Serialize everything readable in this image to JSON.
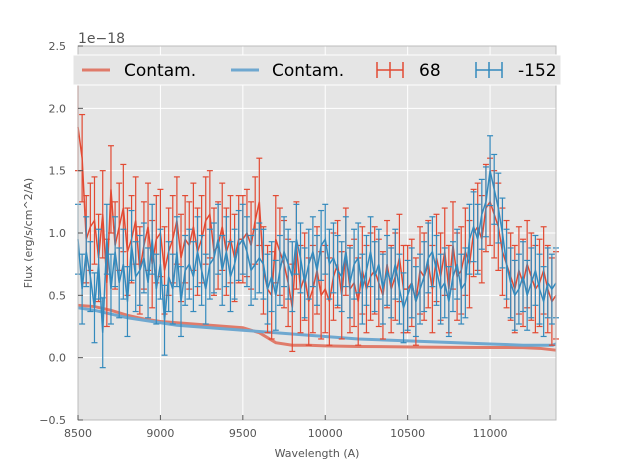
{
  "chart_data": {
    "type": "line",
    "title": "",
    "xlabel": "Wavelength (A)",
    "ylabel": "Flux (erg/s/cm^2/A)",
    "offset_text": "1e−18",
    "xlim": [
      8500,
      11400
    ],
    "ylim": [
      -0.5,
      2.5
    ],
    "xticks": [
      8500,
      9000,
      9500,
      10000,
      10500,
      11000
    ],
    "yticks": [
      -0.5,
      0.0,
      0.5,
      1.0,
      1.5,
      2.0,
      2.5
    ],
    "grid": true,
    "legend_position": "top",
    "legend": [
      {
        "label": "Contam.",
        "kind": "line",
        "color": "#e07b6a"
      },
      {
        "label": "Contam.",
        "kind": "line",
        "color": "#6fa8d0"
      },
      {
        "label": "68",
        "kind": "errorbar",
        "color": "#e24a33"
      },
      {
        "label": "-152",
        "kind": "errorbar",
        "color": "#348abd"
      }
    ],
    "series": [
      {
        "name": "Contam. (68)",
        "color": "#e07b6a",
        "x": [
          8500,
          8600,
          8700,
          8800,
          8900,
          9000,
          9100,
          9200,
          9300,
          9400,
          9500,
          9600,
          9650,
          9700,
          9800,
          9900,
          10000,
          10200,
          10400,
          10600,
          10800,
          11000,
          11200,
          11300,
          11400
        ],
        "y": [
          0.42,
          0.41,
          0.38,
          0.34,
          0.31,
          0.29,
          0.28,
          0.27,
          0.26,
          0.25,
          0.24,
          0.2,
          0.16,
          0.12,
          0.1,
          0.1,
          0.095,
          0.09,
          0.088,
          0.085,
          0.083,
          0.082,
          0.081,
          0.075,
          0.06
        ]
      },
      {
        "name": "Contam. (-152)",
        "color": "#6fa8d0",
        "x": [
          8500,
          8600,
          8700,
          8800,
          8900,
          9000,
          9100,
          9200,
          9300,
          9400,
          9500,
          9600,
          9700,
          9800,
          9900,
          10000,
          10200,
          10400,
          10600,
          10800,
          11000,
          11200,
          11300,
          11380,
          11400
        ],
        "y": [
          0.4,
          0.38,
          0.35,
          0.32,
          0.3,
          0.28,
          0.26,
          0.25,
          0.24,
          0.23,
          0.22,
          0.21,
          0.2,
          0.19,
          0.18,
          0.17,
          0.15,
          0.14,
          0.13,
          0.12,
          0.11,
          0.1,
          0.1,
          0.1,
          0.11
        ]
      },
      {
        "name": "68",
        "color": "#e24a33",
        "errorbars": true,
        "x": [
          8500,
          8525,
          8550,
          8575,
          8600,
          8625,
          8650,
          8675,
          8700,
          8725,
          8750,
          8775,
          8800,
          8825,
          8850,
          8875,
          8900,
          8925,
          8950,
          8975,
          9000,
          9025,
          9050,
          9075,
          9100,
          9125,
          9150,
          9175,
          9200,
          9225,
          9250,
          9275,
          9300,
          9325,
          9350,
          9375,
          9400,
          9425,
          9450,
          9475,
          9500,
          9525,
          9550,
          9575,
          9600,
          9625,
          9650,
          9675,
          9700,
          9725,
          9750,
          9775,
          9800,
          9825,
          9850,
          9875,
          9900,
          9925,
          9950,
          9975,
          10000,
          10025,
          10050,
          10075,
          10100,
          10125,
          10150,
          10175,
          10200,
          10225,
          10250,
          10275,
          10300,
          10325,
          10350,
          10375,
          10400,
          10425,
          10450,
          10475,
          10500,
          10525,
          10550,
          10575,
          10600,
          10625,
          10650,
          10675,
          10700,
          10725,
          10750,
          10775,
          10800,
          10825,
          10850,
          10875,
          10900,
          10925,
          10950,
          10975,
          11000,
          11025,
          11050,
          11075,
          11100,
          11125,
          11150,
          11175,
          11200,
          11225,
          11250,
          11275,
          11300,
          11325,
          11350,
          11375,
          11400
        ],
        "y": [
          1.85,
          1.6,
          0.95,
          1.05,
          1.1,
          0.8,
          1.15,
          0.6,
          1.35,
          0.9,
          1.05,
          1.2,
          0.85,
          0.95,
          1.1,
          0.7,
          0.9,
          1.05,
          0.75,
          0.95,
          1.0,
          0.7,
          0.85,
          0.95,
          1.1,
          0.8,
          0.95,
          0.9,
          1.05,
          0.85,
          0.95,
          1.1,
          1.15,
          0.85,
          0.9,
          1.05,
          0.85,
          0.95,
          0.8,
          0.95,
          0.95,
          1.0,
          0.9,
          1.1,
          1.25,
          0.7,
          0.55,
          0.5,
          0.95,
          0.85,
          0.75,
          0.6,
          0.4,
          0.9,
          0.55,
          0.65,
          0.45,
          0.55,
          0.7,
          0.5,
          0.55,
          0.45,
          0.65,
          0.75,
          0.5,
          0.85,
          0.55,
          0.6,
          0.45,
          0.7,
          0.55,
          0.65,
          0.7,
          0.6,
          0.5,
          0.75,
          0.55,
          0.65,
          0.8,
          0.55,
          0.55,
          0.6,
          0.45,
          0.7,
          0.65,
          0.75,
          0.55,
          0.8,
          0.65,
          0.85,
          0.55,
          0.9,
          0.65,
          0.7,
          0.85,
          0.75,
          1.0,
          1.05,
          0.95,
          1.2,
          1.25,
          1.15,
          1.05,
          0.85,
          0.75,
          0.65,
          0.55,
          0.7,
          0.6,
          0.75,
          0.65,
          0.55,
          0.6,
          0.7,
          0.55,
          0.45,
          0.5
        ],
        "yerr": 0.35
      },
      {
        "name": "-152",
        "color": "#348abd",
        "errorbars": true,
        "x": [
          8500,
          8525,
          8550,
          8575,
          8600,
          8625,
          8650,
          8675,
          8700,
          8725,
          8750,
          8775,
          8800,
          8825,
          8850,
          8875,
          8900,
          8925,
          8950,
          8975,
          9000,
          9025,
          9050,
          9075,
          9100,
          9125,
          9150,
          9175,
          9200,
          9225,
          9250,
          9275,
          9300,
          9325,
          9350,
          9375,
          9400,
          9425,
          9450,
          9475,
          9500,
          9525,
          9550,
          9575,
          9600,
          9625,
          9650,
          9675,
          9700,
          9725,
          9750,
          9775,
          9800,
          9825,
          9850,
          9875,
          9900,
          9925,
          9950,
          9975,
          10000,
          10025,
          10050,
          10075,
          10100,
          10125,
          10150,
          10175,
          10200,
          10225,
          10250,
          10275,
          10300,
          10325,
          10350,
          10375,
          10400,
          10425,
          10450,
          10475,
          10500,
          10525,
          10550,
          10575,
          10600,
          10625,
          10650,
          10675,
          10700,
          10725,
          10750,
          10775,
          10800,
          10825,
          10850,
          10875,
          10900,
          10925,
          10950,
          10975,
          11000,
          11025,
          11050,
          11075,
          11100,
          11125,
          11150,
          11175,
          11200,
          11225,
          11250,
          11275,
          11300,
          11325,
          11350,
          11375,
          11400
        ],
        "y": [
          0.95,
          0.55,
          0.85,
          0.65,
          0.4,
          0.75,
          0.2,
          0.95,
          0.55,
          0.85,
          0.6,
          0.75,
          0.45,
          0.9,
          0.65,
          0.7,
          0.8,
          0.6,
          0.95,
          0.55,
          0.75,
          0.3,
          0.65,
          0.55,
          0.85,
          0.45,
          0.7,
          0.75,
          0.65,
          0.85,
          0.7,
          0.55,
          0.75,
          0.8,
          0.95,
          0.7,
          0.85,
          0.65,
          0.75,
          0.9,
          0.95,
          0.85,
          0.7,
          0.75,
          0.8,
          0.75,
          0.55,
          0.65,
          0.5,
          0.7,
          0.85,
          0.75,
          0.65,
          0.95,
          0.8,
          0.6,
          0.75,
          0.85,
          0.7,
          0.9,
          0.95,
          0.75,
          0.8,
          0.7,
          0.65,
          0.85,
          0.6,
          0.75,
          0.8,
          0.55,
          0.7,
          0.85,
          0.65,
          0.75,
          0.55,
          0.7,
          0.6,
          0.75,
          0.55,
          0.4,
          0.5,
          0.6,
          0.45,
          0.55,
          0.65,
          0.8,
          0.85,
          0.7,
          0.55,
          0.6,
          0.45,
          0.65,
          0.75,
          0.55,
          0.6,
          0.95,
          1.05,
          0.95,
          1.15,
          1.25,
          1.5,
          1.35,
          1.2,
          1.0,
          0.75,
          0.6,
          0.5,
          0.55,
          0.65,
          0.5,
          0.6,
          0.7,
          0.55,
          0.45,
          0.6,
          0.55,
          0.6
        ],
        "yerr": 0.28
      }
    ]
  }
}
